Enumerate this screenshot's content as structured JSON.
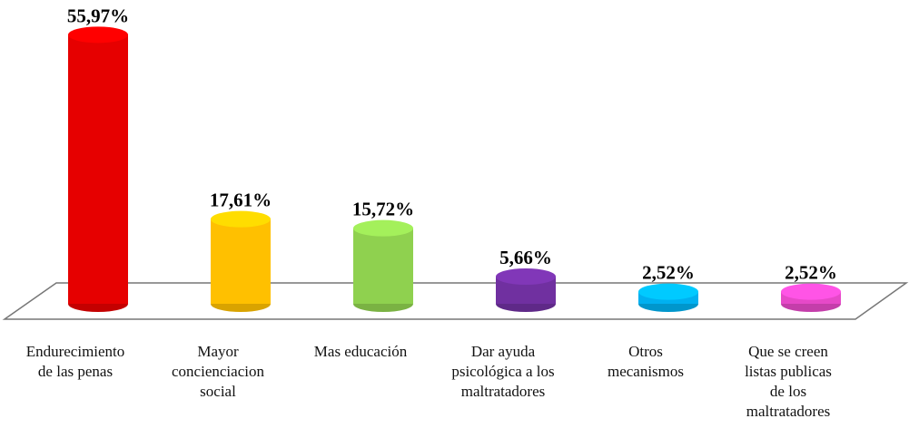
{
  "chart_data": {
    "type": "bar3d",
    "categories": [
      "Endurecimiento\nde las penas",
      "Mayor\nconcienciacion\nsocial",
      "Mas educación",
      "Dar ayuda\npsicológica a los\nmaltratadores",
      "Otros\nmecanismos",
      "Que se creen\nlistas publicas\nde los\nmaltratadores"
    ],
    "values": [
      55.97,
      17.61,
      15.72,
      5.66,
      2.52,
      2.52
    ],
    "value_labels": [
      "55,97%",
      "17,61%",
      "15,72%",
      "5,66%",
      "2,52%",
      "2,52%"
    ],
    "colors": [
      "#e60000",
      "#ffc000",
      "#8fd14f",
      "#7030a0",
      "#00b0f0",
      "#e649c8"
    ]
  }
}
